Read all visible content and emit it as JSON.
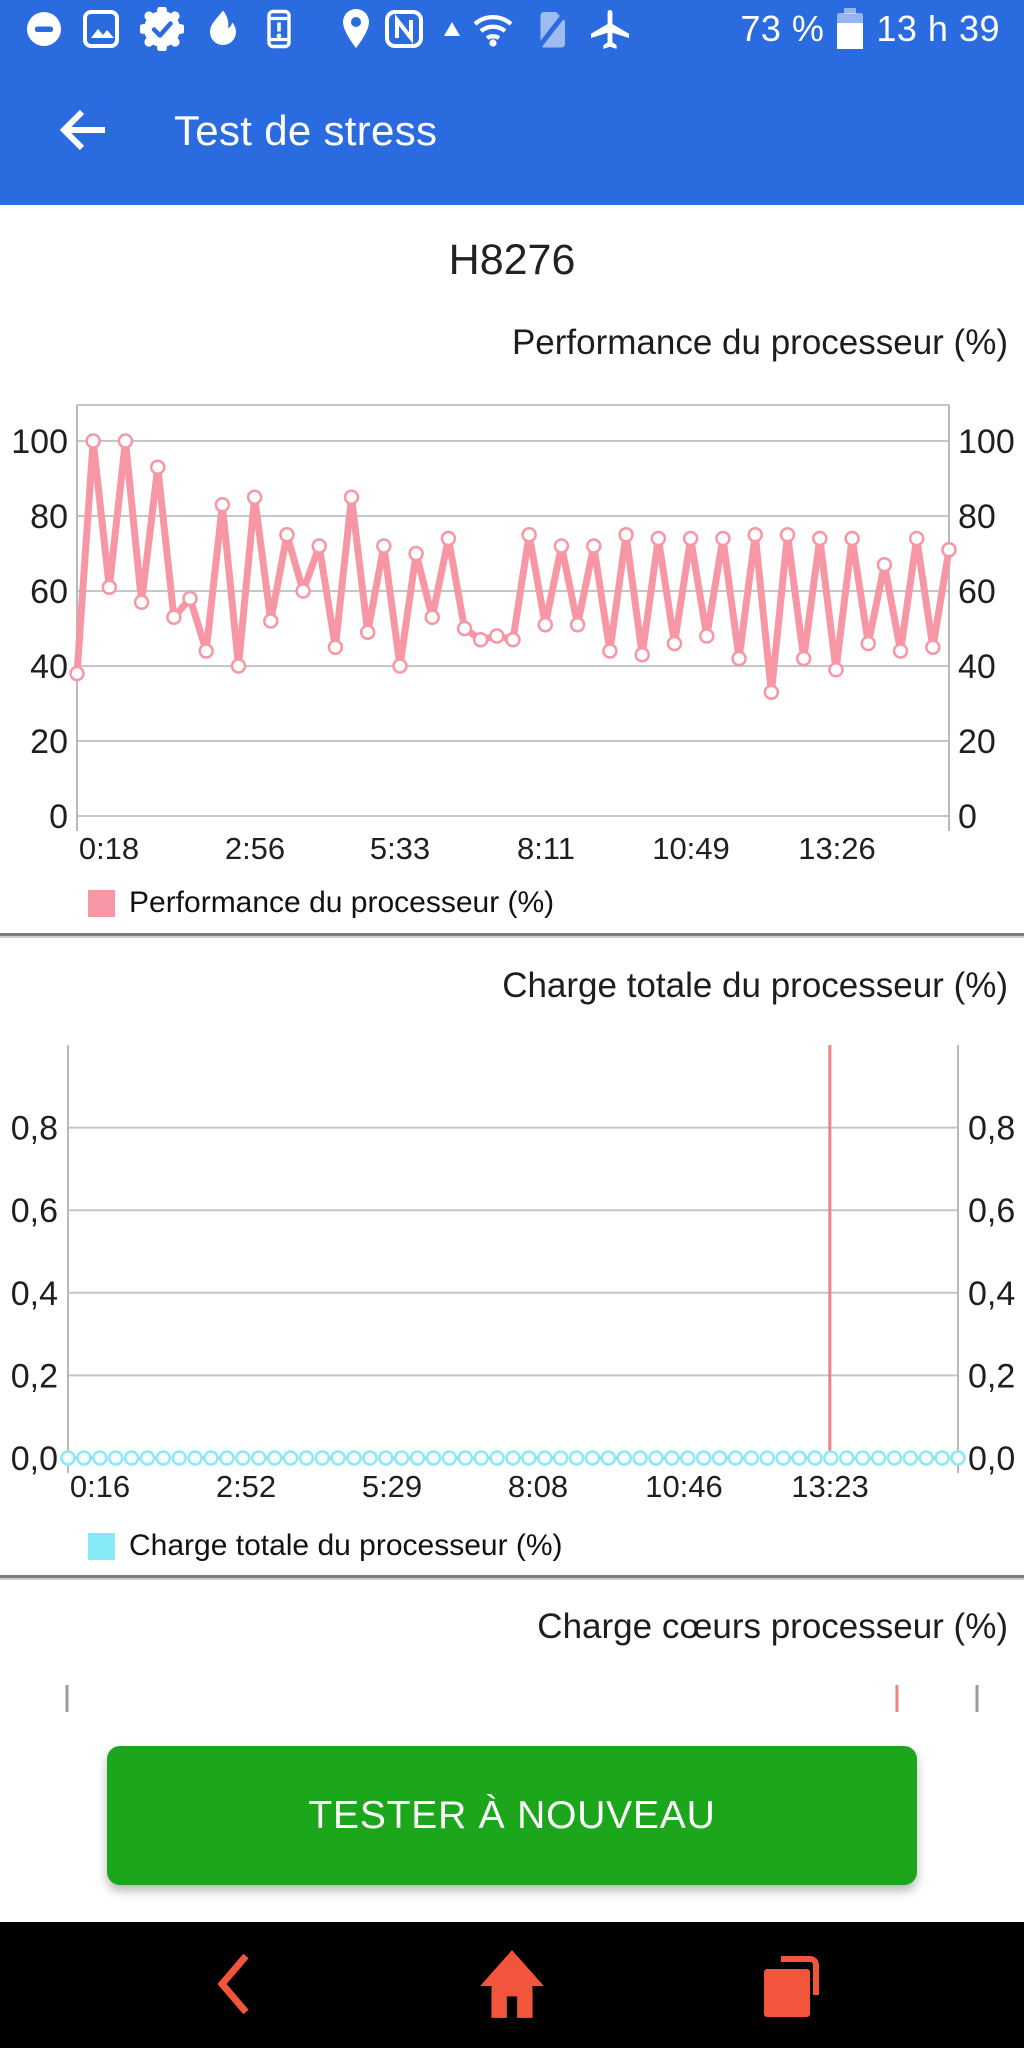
{
  "status_bar": {
    "icons": [
      "do-not-disturb",
      "screenshot",
      "badge-check",
      "flame",
      "device-alert",
      "location",
      "nfc",
      "signal-triangle",
      "wifi",
      "no-sim",
      "airplane-mode"
    ],
    "battery_percent_text": "73 %",
    "battery_level": 73,
    "time": "13 h 39"
  },
  "app_bar": {
    "title": "Test de stress",
    "back_icon": "arrow-left"
  },
  "device": {
    "model": "H8276"
  },
  "chart_data": [
    {
      "type": "line",
      "title": "Performance du processeur (%)",
      "legend": "Performance du processeur (%)",
      "color": "#f797a6",
      "marker_style": "open-circle",
      "grid": true,
      "x_tick_labels": [
        "0:18",
        "2:56",
        "5:33",
        "8:11",
        "10:49",
        "13:26"
      ],
      "y_ticks": [
        0,
        20,
        40,
        60,
        80,
        100
      ],
      "ylim": [
        0,
        110
      ],
      "values": [
        38,
        100,
        61,
        100,
        57,
        93,
        53,
        58,
        44,
        83,
        40,
        85,
        52,
        75,
        60,
        72,
        45,
        85,
        49,
        72,
        40,
        70,
        53,
        74,
        50,
        47,
        48,
        47,
        75,
        51,
        72,
        51,
        72,
        44,
        75,
        43,
        74,
        46,
        74,
        48,
        74,
        42,
        75,
        33,
        75,
        42,
        74,
        39,
        74,
        46,
        67,
        44,
        74,
        45,
        71
      ]
    },
    {
      "type": "line",
      "title": "Charge totale du processeur (%)",
      "legend": "Charge totale du processeur (%)",
      "color": "#87eaf6",
      "marker_style": "open-circle",
      "grid": true,
      "x_tick_labels": [
        "0:16",
        "2:52",
        "5:29",
        "8:08",
        "10:46",
        "13:23"
      ],
      "y_tick_labels": [
        "0,0",
        "0,2",
        "0,4",
        "0,6",
        "0,8"
      ],
      "y_ticks": [
        0,
        0.2,
        0.4,
        0.6,
        0.8
      ],
      "ylim": [
        0,
        1
      ],
      "values": [
        0,
        0,
        0,
        0,
        0,
        0,
        0,
        0,
        0,
        0,
        0,
        0,
        0,
        0,
        0,
        0,
        0,
        0,
        0,
        0,
        0,
        0,
        0,
        0,
        0,
        0,
        0,
        0,
        0,
        0,
        0,
        0,
        0,
        0,
        0,
        0,
        0,
        0,
        0,
        0,
        0,
        0,
        0,
        0,
        0,
        0,
        0,
        0,
        0,
        0,
        0,
        0,
        0,
        0,
        0,
        0,
        0
      ],
      "baseline_dash_color": "#f0a3a3",
      "event_line": {
        "color": "#ef8383",
        "x_fraction": 0.856
      }
    },
    {
      "type": "line",
      "title": "Charge cœurs processeur (%)",
      "partial": true,
      "event_tick": {
        "color": "#ef8383",
        "x_fraction": 0.912
      }
    }
  ],
  "actions": {
    "retest_label": "TESTER À NOUVEAU"
  },
  "nav_bar": {
    "icons": [
      "back",
      "home",
      "recents"
    ],
    "icon_color": "#f2543c"
  },
  "colors": {
    "top_bar": "#2b6be0",
    "button_green": "#1ca61c",
    "grid_gray": "#c6c6c6"
  }
}
